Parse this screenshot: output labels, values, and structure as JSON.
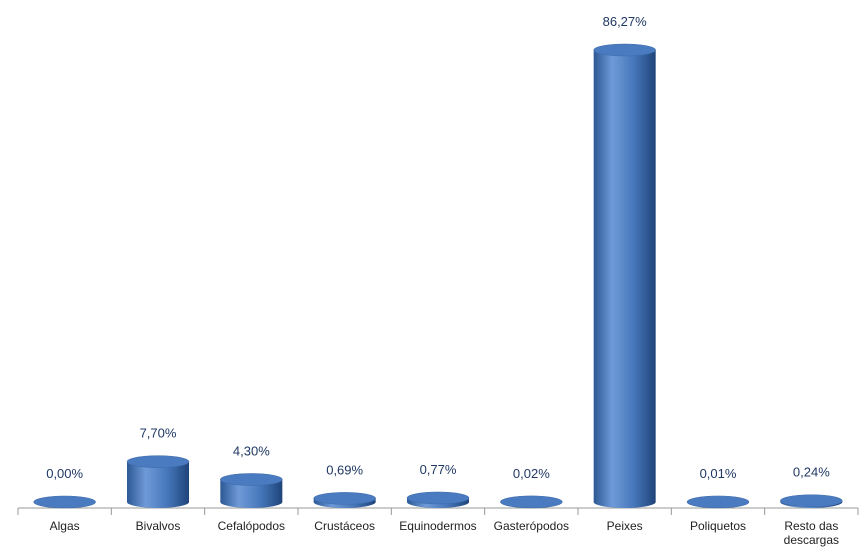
{
  "chart_data": {
    "type": "bar",
    "categories": [
      "Algas",
      "Bivalvos",
      "Cefalópodos",
      "Crustáceos",
      "Equinodermos",
      "Gasterópodos",
      "Peixes",
      "Poliquetos",
      "Resto das descargas"
    ],
    "values": [
      0,
      7.7,
      4.3,
      0.69,
      0.77,
      0.02,
      86.27,
      0.01,
      0.24
    ],
    "value_labels": [
      "0,00%",
      "7,70%",
      "4,30%",
      "0,69%",
      "0,77%",
      "0,02%",
      "86,27%",
      "0,01%",
      "0,24%"
    ],
    "color": "#4a7bc0"
  }
}
